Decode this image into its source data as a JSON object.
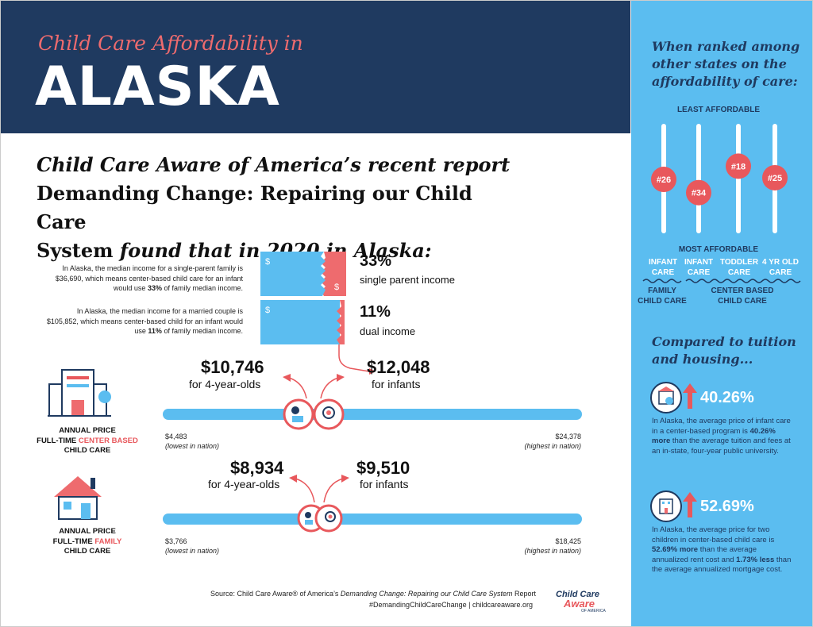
{
  "header": {
    "kicker": "Child Care Affordability in",
    "state": "ALASKA"
  },
  "headline": {
    "line1": "Child Care Aware of America’s recent report",
    "line2": "Demanding Change: Repairing our Child Care",
    "line3_bold": "System",
    "line3_italic": " found that in 2020 in Alaska:"
  },
  "income": {
    "single": {
      "text_a": "In Alaska, the median income for a single-parent family is $36,690, which means center-based child care for an infant would use ",
      "text_b": "33%",
      "text_c": " of family median income.",
      "pct": "33%",
      "label": "single parent income",
      "share": 0.33
    },
    "dual": {
      "text_a": "In Alaska, the median income for a married couple is $105,852, which means center-based child for an infant would use ",
      "text_b": "11%",
      "text_c": " of family median income.",
      "pct": "11%",
      "label": "dual income",
      "share": 0.11
    },
    "currency_symbol": "$"
  },
  "center": {
    "cat_line1": "ANNUAL PRICE",
    "cat_line2a": "FULL-TIME ",
    "cat_line2b": "CENTER BASED",
    "cat_line3": "CHILD CARE",
    "price_4yr": "$10,746",
    "label_4yr": "for 4-year-olds",
    "price_infant": "$12,048",
    "label_infant": "for infants",
    "low": "$4,483",
    "low_note": "(lowest in nation)",
    "high": "$24,378",
    "high_note": "(highest in nation)"
  },
  "family": {
    "cat_line1": "ANNUAL PRICE",
    "cat_line2a": "FULL-TIME ",
    "cat_line2b": "FAMILY",
    "cat_line3": "CHILD CARE",
    "price_4yr": "$8,934",
    "label_4yr": "for 4-year-olds",
    "price_infant": "$9,510",
    "label_infant": "for infants",
    "low": "$3,766",
    "low_note": "(lowest in nation)",
    "high": "$18,425",
    "high_note": "(highest in nation)"
  },
  "footer": {
    "source_a": "Source: Child Care Aware® of America’s ",
    "source_b": "Demanding Change: Repairing our Child Care System",
    "source_c": " Report",
    "tagline": "#DemandingChildCareChange | childcareaware.org",
    "logo_a": "Child Care",
    "logo_b": "Aware",
    "logo_c": "OF AMERICA"
  },
  "sidebar": {
    "title": "When ranked among other states on the affordability of care:",
    "least": "LEAST AFFORDABLE",
    "most": "MOST AFFORDABLE",
    "ranks": [
      {
        "rank": "#26",
        "value": 26,
        "col1": "INFANT",
        "col2": "CARE"
      },
      {
        "rank": "#34",
        "value": 34,
        "col1": "INFANT",
        "col2": "CARE"
      },
      {
        "rank": "#18",
        "value": 18,
        "col1": "TODDLER",
        "col2": "CARE"
      },
      {
        "rank": "#25",
        "value": 25,
        "col1": "4 YR OLD",
        "col2": "CARE"
      }
    ],
    "group_family_1": "FAMILY",
    "group_family_2": "CHILD CARE",
    "group_center_1": "CENTER BASED",
    "group_center_2": "CHILD CARE",
    "compare_title": "Compared to tuition and housing...",
    "tuition": {
      "pct": "40.26%",
      "text_a": "In Alaska, the average price of infant care in a center-based program is ",
      "text_b": "40.26% more",
      "text_c": " than the average tuition and fees at an in-state, four-year public university."
    },
    "housing": {
      "pct": "52.69%",
      "text_a": "In Alaska, the average price for two children in center-based child care is ",
      "text_b": "52.69% more",
      "text_c": " than the average annualized rent cost and ",
      "text_d": "1.73% less",
      "text_e": " than the average annualized mortgage cost."
    }
  },
  "colors": {
    "navy": "#1f3a60",
    "coral": "#e8585c",
    "sky": "#5bbdf0"
  }
}
